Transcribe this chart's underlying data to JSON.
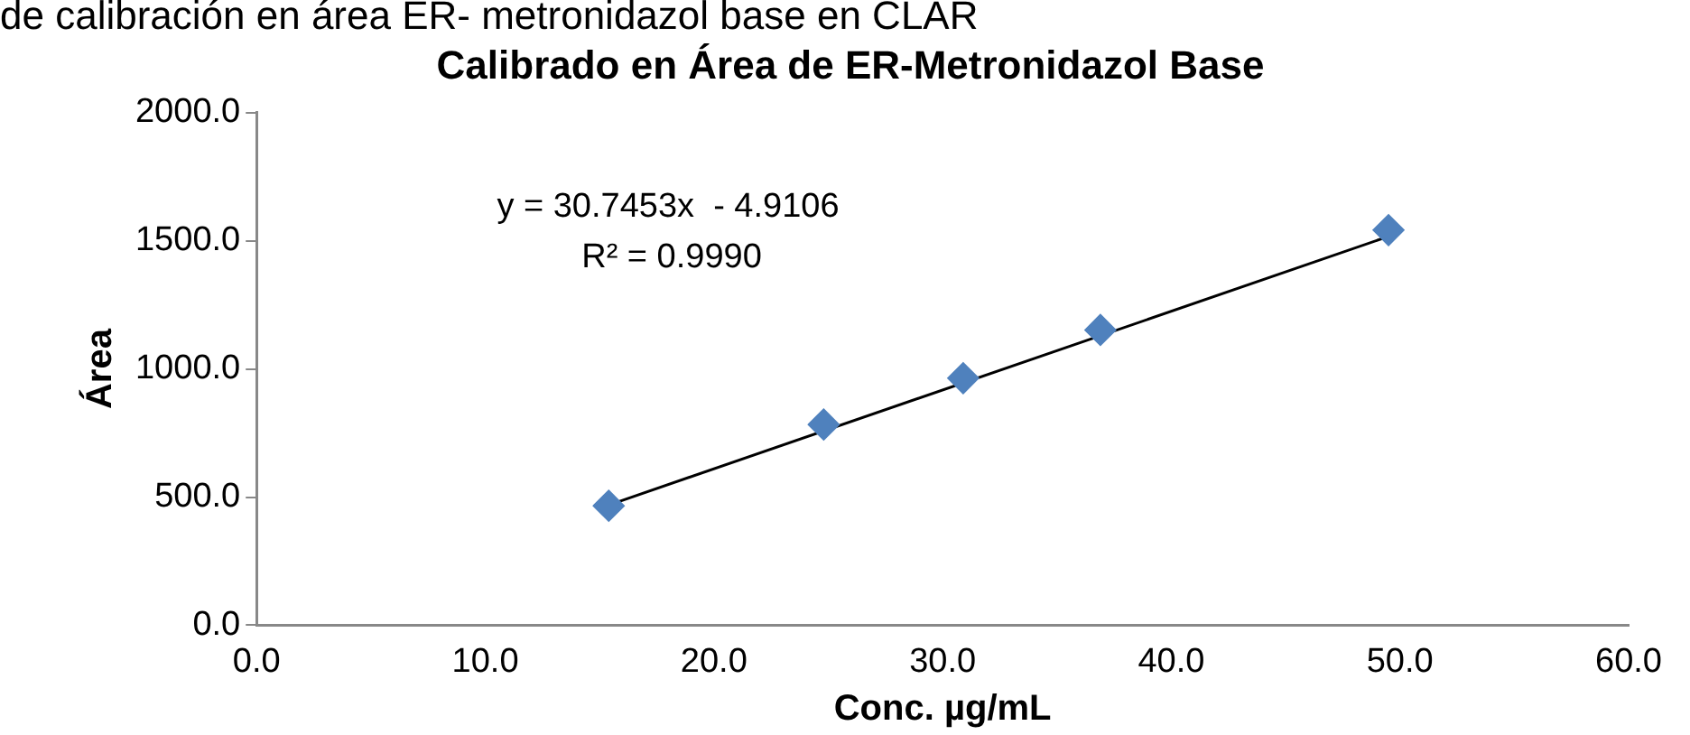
{
  "chart_data": {
    "type": "scatter",
    "title": "Calibrado en Área de ER-Metronidazol Base",
    "xlabel": "Conc. µg/mL",
    "ylabel": "Área",
    "annotations": [
      "de calibración en área ER- metronidazol base en CLAR",
      "y = 30.7453x  - 4.9106",
      "R² = 0.9990"
    ],
    "series": [
      {
        "type": "scatter",
        "color": "#4f81bd",
        "marker": "diamond",
        "x": [
          15.4,
          24.8,
          30.9,
          36.9,
          49.5
        ],
        "values": [
          466,
          783,
          964,
          1152,
          1542
        ]
      },
      {
        "type": "line",
        "color": "#000000",
        "marker": "none",
        "x": [
          15.4,
          49.5
        ],
        "values": [
          469,
          1517
        ]
      }
    ],
    "xlim": [
      0,
      60
    ],
    "xticks": [
      {
        "value": 0,
        "label": "0.0"
      },
      {
        "value": 10,
        "label": "10.0"
      },
      {
        "value": 20,
        "label": "20.0"
      },
      {
        "value": 30,
        "label": "30.0"
      },
      {
        "value": 40,
        "label": "40.0"
      },
      {
        "value": 50,
        "label": "50.0"
      },
      {
        "value": 60,
        "label": "60.0"
      }
    ],
    "ylim": [
      0,
      2000
    ],
    "yticks": [
      {
        "value": 0,
        "label": "0.0"
      },
      {
        "value": 500,
        "label": "500.0"
      },
      {
        "value": 1000,
        "label": "1000.0"
      },
      {
        "value": 1500,
        "label": "1500.0"
      },
      {
        "value": 2000,
        "label": "2000.0"
      }
    ],
    "grid": false,
    "legend": false
  }
}
